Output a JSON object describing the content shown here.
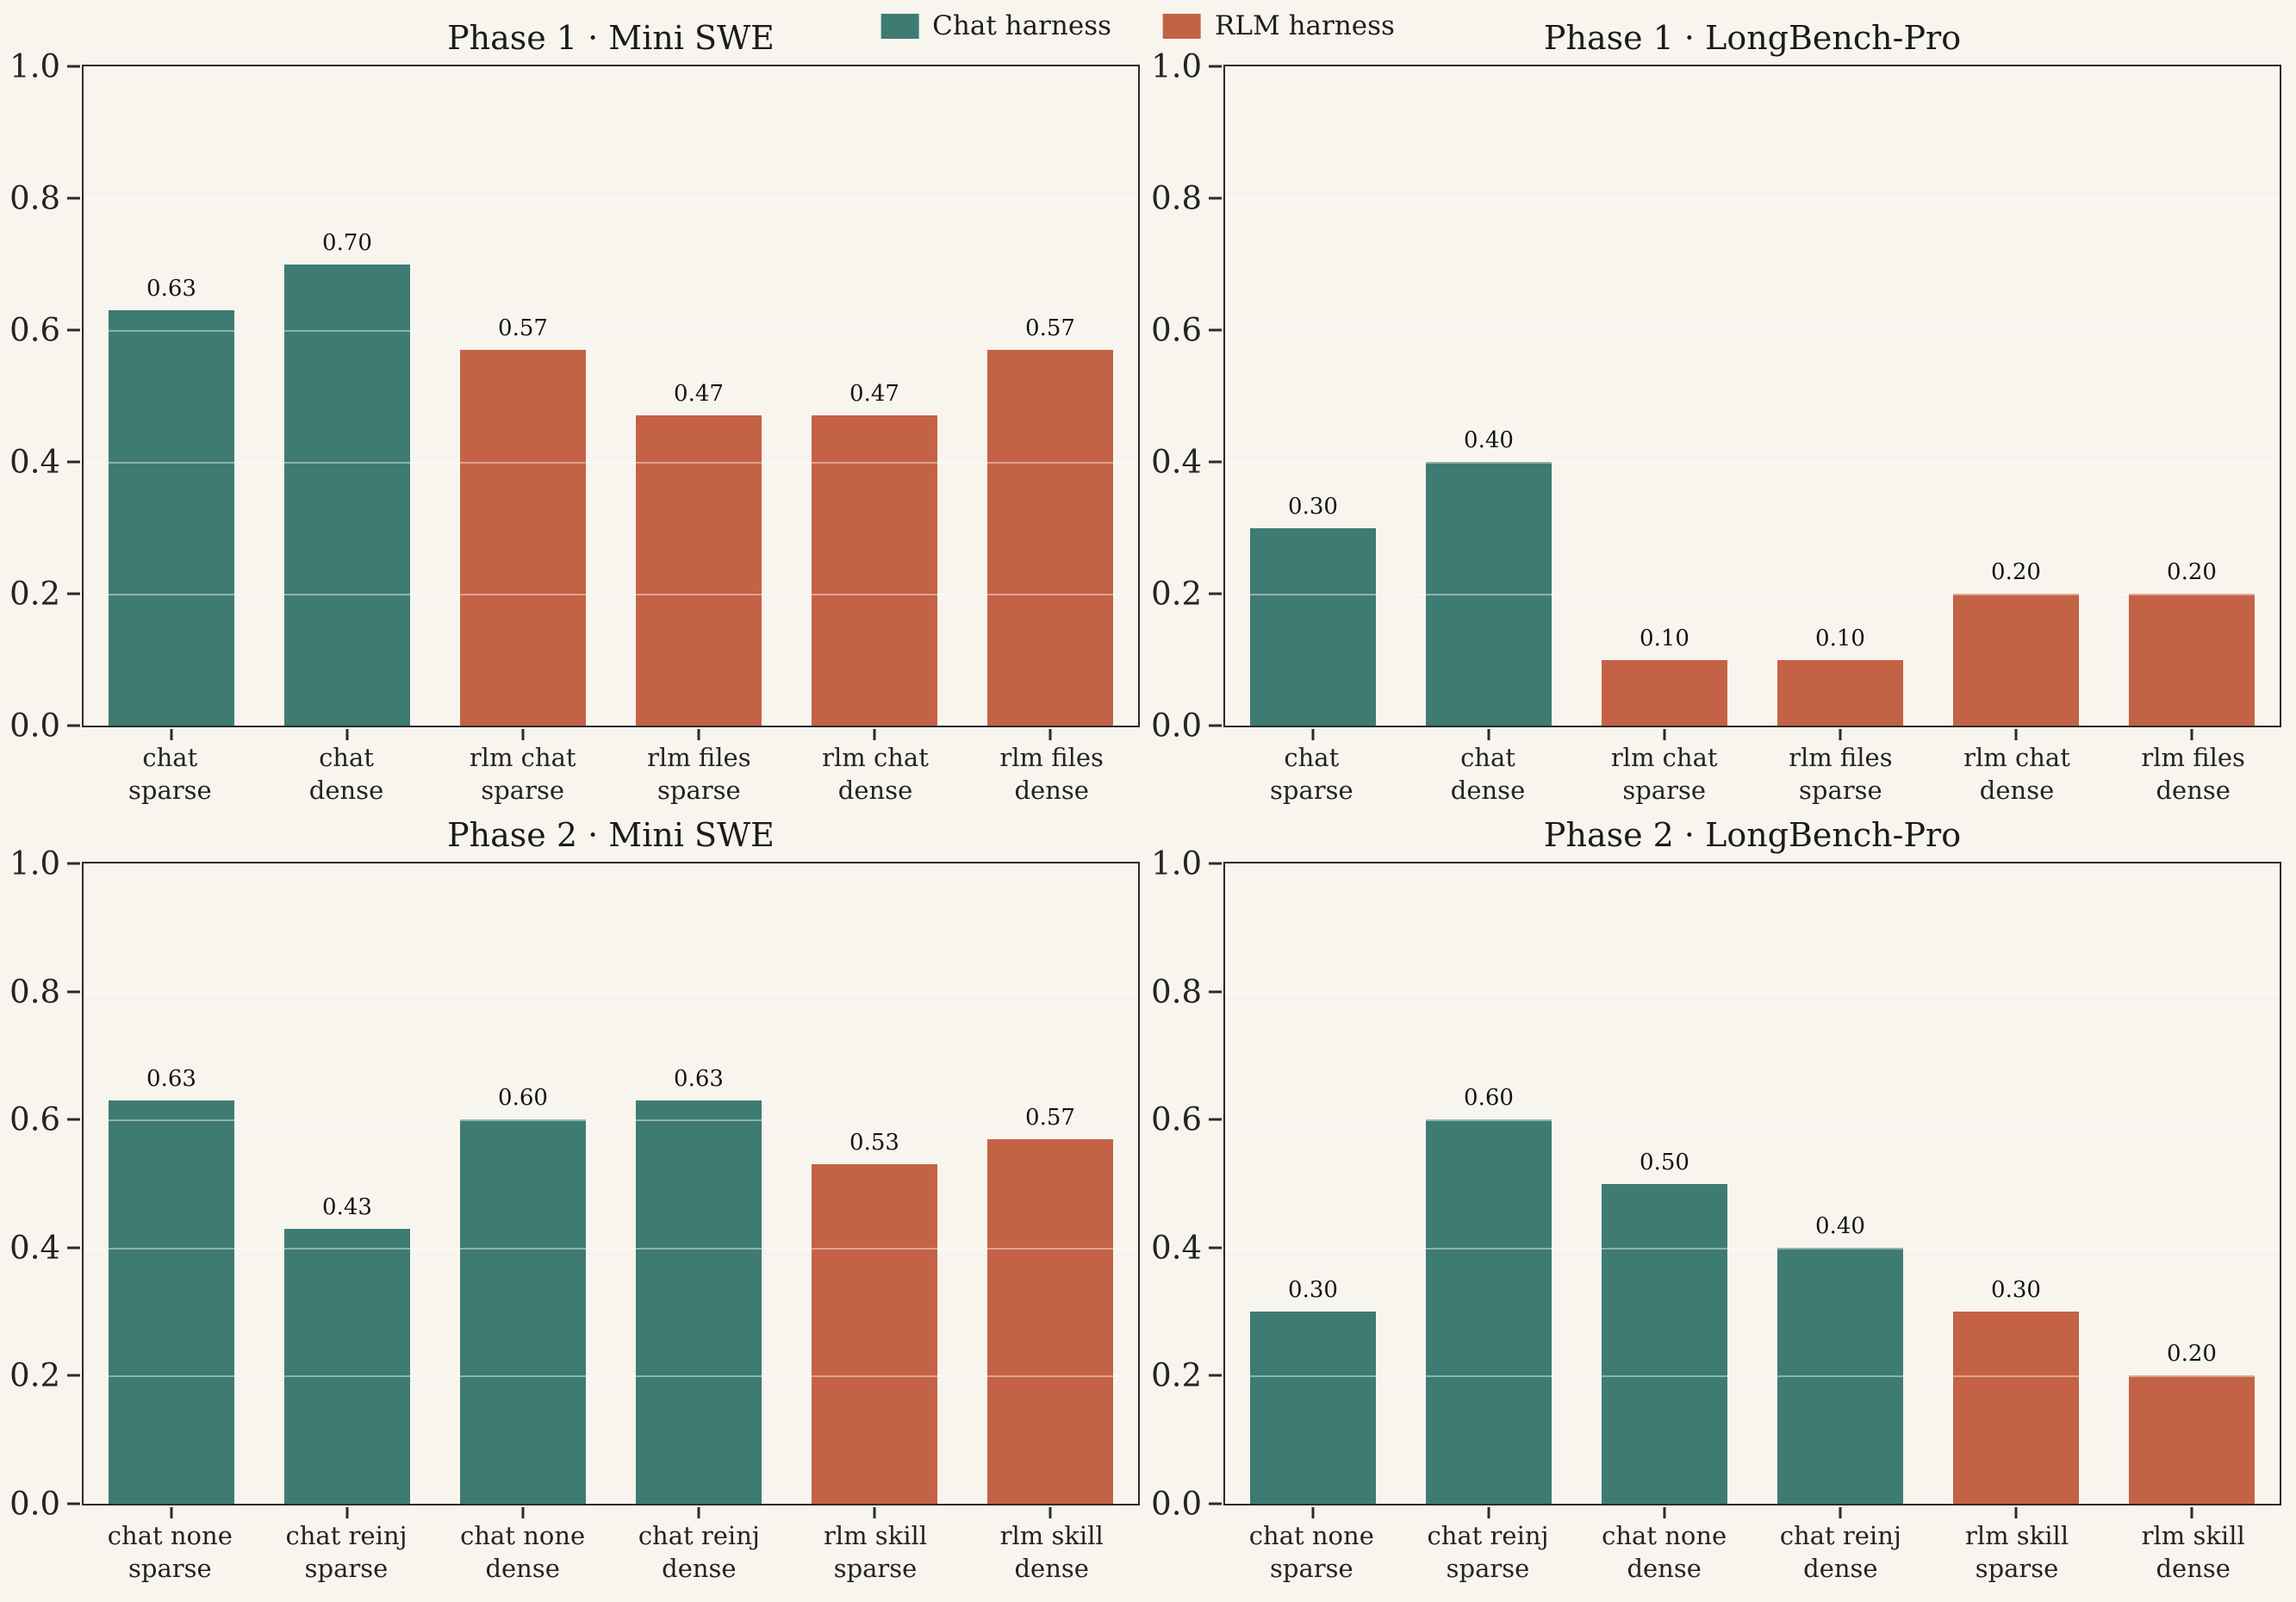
{
  "figure_background": "#f8f5ee",
  "colors": {
    "chat": "#3e7b73",
    "rlm": "#c46245",
    "spine": "#2b2b2b",
    "grid": "rgba(255,255,255,0.42)",
    "text": "#1e1e1e"
  },
  "legend": {
    "position": "top center",
    "items": [
      {
        "label": "Chat harness",
        "key": "chat"
      },
      {
        "label": "RLM harness",
        "key": "rlm"
      }
    ]
  },
  "chart_data": [
    {
      "type": "bar",
      "title": "Phase 1 · Mini SWE",
      "xlabel": "",
      "ylabel": "",
      "ylim": [
        0,
        1
      ],
      "yticks": [
        "1.0",
        "0.8",
        "0.6",
        "0.4",
        "0.2",
        "0.0"
      ],
      "grid": "horizontal",
      "bars": [
        {
          "category": [
            "chat",
            "sparse"
          ],
          "value": 0.63,
          "label": "0.63",
          "harness": "chat"
        },
        {
          "category": [
            "chat",
            "dense"
          ],
          "value": 0.7,
          "label": "0.70",
          "harness": "chat"
        },
        {
          "category": [
            "rlm chat",
            "sparse"
          ],
          "value": 0.57,
          "label": "0.57",
          "harness": "rlm"
        },
        {
          "category": [
            "rlm files",
            "sparse"
          ],
          "value": 0.47,
          "label": "0.47",
          "harness": "rlm"
        },
        {
          "category": [
            "rlm chat",
            "dense"
          ],
          "value": 0.47,
          "label": "0.47",
          "harness": "rlm"
        },
        {
          "category": [
            "rlm files",
            "dense"
          ],
          "value": 0.57,
          "label": "0.57",
          "harness": "rlm"
        }
      ]
    },
    {
      "type": "bar",
      "title": "Phase 1 · LongBench-Pro",
      "xlabel": "",
      "ylabel": "",
      "ylim": [
        0,
        1
      ],
      "yticks": [
        "1.0",
        "0.8",
        "0.6",
        "0.4",
        "0.2",
        "0.0"
      ],
      "grid": "horizontal",
      "bars": [
        {
          "category": [
            "chat",
            "sparse"
          ],
          "value": 0.3,
          "label": "0.30",
          "harness": "chat"
        },
        {
          "category": [
            "chat",
            "dense"
          ],
          "value": 0.4,
          "label": "0.40",
          "harness": "chat"
        },
        {
          "category": [
            "rlm chat",
            "sparse"
          ],
          "value": 0.1,
          "label": "0.10",
          "harness": "rlm"
        },
        {
          "category": [
            "rlm files",
            "sparse"
          ],
          "value": 0.1,
          "label": "0.10",
          "harness": "rlm"
        },
        {
          "category": [
            "rlm chat",
            "dense"
          ],
          "value": 0.2,
          "label": "0.20",
          "harness": "rlm"
        },
        {
          "category": [
            "rlm files",
            "dense"
          ],
          "value": 0.2,
          "label": "0.20",
          "harness": "rlm"
        }
      ]
    },
    {
      "type": "bar",
      "title": "Phase 2 · Mini SWE",
      "xlabel": "",
      "ylabel": "",
      "ylim": [
        0,
        1
      ],
      "yticks": [
        "1.0",
        "0.8",
        "0.6",
        "0.4",
        "0.2",
        "0.0"
      ],
      "grid": "horizontal",
      "bars": [
        {
          "category": [
            "chat none",
            "sparse"
          ],
          "value": 0.63,
          "label": "0.63",
          "harness": "chat"
        },
        {
          "category": [
            "chat reinj",
            "sparse"
          ],
          "value": 0.43,
          "label": "0.43",
          "harness": "chat"
        },
        {
          "category": [
            "chat none",
            "dense"
          ],
          "value": 0.6,
          "label": "0.60",
          "harness": "chat"
        },
        {
          "category": [
            "chat reinj",
            "dense"
          ],
          "value": 0.63,
          "label": "0.63",
          "harness": "chat"
        },
        {
          "category": [
            "rlm skill",
            "sparse"
          ],
          "value": 0.53,
          "label": "0.53",
          "harness": "rlm"
        },
        {
          "category": [
            "rlm skill",
            "dense"
          ],
          "value": 0.57,
          "label": "0.57",
          "harness": "rlm"
        }
      ]
    },
    {
      "type": "bar",
      "title": "Phase 2 · LongBench-Pro",
      "xlabel": "",
      "ylabel": "",
      "ylim": [
        0,
        1
      ],
      "yticks": [
        "1.0",
        "0.8",
        "0.6",
        "0.4",
        "0.2",
        "0.0"
      ],
      "grid": "horizontal",
      "bars": [
        {
          "category": [
            "chat none",
            "sparse"
          ],
          "value": 0.3,
          "label": "0.30",
          "harness": "chat"
        },
        {
          "category": [
            "chat reinj",
            "sparse"
          ],
          "value": 0.6,
          "label": "0.60",
          "harness": "chat"
        },
        {
          "category": [
            "chat none",
            "dense"
          ],
          "value": 0.5,
          "label": "0.50",
          "harness": "chat"
        },
        {
          "category": [
            "chat reinj",
            "dense"
          ],
          "value": 0.4,
          "label": "0.40",
          "harness": "chat"
        },
        {
          "category": [
            "rlm skill",
            "sparse"
          ],
          "value": 0.3,
          "label": "0.30",
          "harness": "rlm"
        },
        {
          "category": [
            "rlm skill",
            "dense"
          ],
          "value": 0.2,
          "label": "0.20",
          "harness": "rlm"
        }
      ]
    }
  ]
}
